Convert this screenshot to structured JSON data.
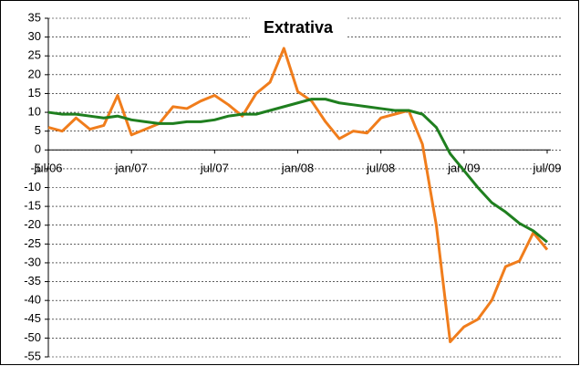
{
  "chart_data": {
    "type": "line",
    "title": "Extrativa",
    "categories": [
      "jul/06",
      null,
      null,
      null,
      null,
      null,
      "jan/07",
      null,
      null,
      null,
      null,
      null,
      "jul/07",
      null,
      null,
      null,
      null,
      null,
      "jan/08",
      null,
      null,
      null,
      null,
      null,
      "jul/08",
      null,
      null,
      null,
      null,
      null,
      "jan/09",
      null,
      null,
      null,
      null,
      null,
      "jul/09"
    ],
    "series": [
      {
        "color": "#f07d1c",
        "values": [
          6,
          5,
          8.5,
          5.5,
          6.5,
          14.5,
          4,
          5.5,
          7,
          11.5,
          11,
          13,
          14.5,
          12,
          9,
          15,
          18,
          27,
          15.5,
          13,
          7.5,
          3,
          5,
          4.5,
          8.5,
          9.5,
          10.5,
          1.5,
          -20,
          -51,
          -47,
          -45,
          -40,
          -31,
          -29.5,
          -22,
          -26.5
        ]
      },
      {
        "color": "#1f7f1f",
        "values": [
          10,
          9.5,
          9.5,
          9,
          8.5,
          9,
          8,
          7.5,
          7,
          7,
          7.5,
          7.5,
          8,
          9,
          9.5,
          9.5,
          10.5,
          11.5,
          12.5,
          13.5,
          13.5,
          12.5,
          12,
          11.5,
          11,
          10.5,
          10.5,
          9.5,
          6,
          -1,
          -5.5,
          -10,
          -14,
          -16.5,
          -19.5,
          -21.5,
          -24.5
        ]
      }
    ],
    "ylim": [
      -55,
      35
    ],
    "yticks": [
      -55,
      -50,
      -45,
      -40,
      -35,
      -30,
      -25,
      -20,
      -15,
      -10,
      -5,
      0,
      5,
      10,
      15,
      20,
      25,
      30,
      35
    ],
    "grid": true
  }
}
